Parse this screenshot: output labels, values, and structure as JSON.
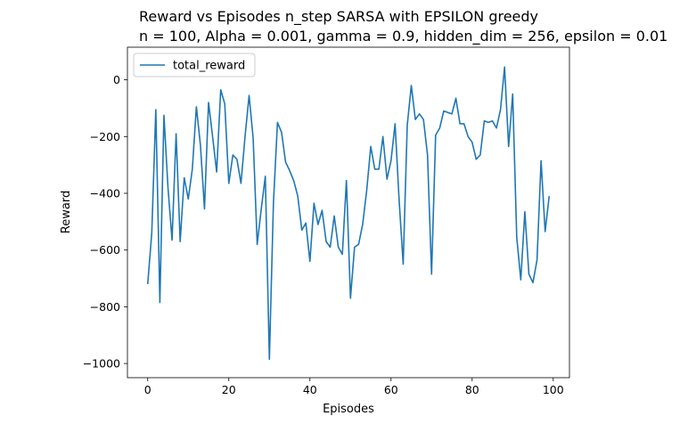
{
  "chart_data": {
    "type": "line",
    "title": "Reward vs Episodes n_step SARSA with EPSILON greedy",
    "subtitle": "n = 100, Alpha = 0.001, gamma = 0.9, hidden_dim = 256, epsilon = 0.01",
    "xlabel": "Episodes",
    "ylabel": "Reward",
    "xlim": [
      -5,
      104
    ],
    "ylim": [
      -1050,
      115
    ],
    "xticks": [
      0,
      20,
      40,
      60,
      80,
      100
    ],
    "yticks": [
      0,
      -200,
      -400,
      -600,
      -800,
      -1000
    ],
    "grid": false,
    "legend_position": "top-left",
    "series": [
      {
        "name": "total_reward",
        "color": "#1f77b4",
        "x": [
          0,
          1,
          2,
          3,
          4,
          5,
          6,
          7,
          8,
          9,
          10,
          11,
          12,
          13,
          14,
          15,
          16,
          17,
          18,
          19,
          20,
          21,
          22,
          23,
          24,
          25,
          26,
          27,
          28,
          29,
          30,
          31,
          32,
          33,
          34,
          35,
          36,
          37,
          38,
          39,
          40,
          41,
          42,
          43,
          44,
          45,
          46,
          47,
          48,
          49,
          50,
          51,
          52,
          53,
          54,
          55,
          56,
          57,
          58,
          59,
          60,
          61,
          62,
          63,
          64,
          65,
          66,
          67,
          68,
          69,
          70,
          71,
          72,
          73,
          74,
          75,
          76,
          77,
          78,
          79,
          80,
          81,
          82,
          83,
          84,
          85,
          86,
          87,
          88,
          89,
          90,
          91,
          92,
          93,
          94,
          95,
          96,
          97,
          98,
          99
        ],
        "values": [
          -720,
          -540,
          -105,
          -785,
          -125,
          -380,
          -565,
          -190,
          -570,
          -345,
          -420,
          -315,
          -95,
          -230,
          -455,
          -80,
          -200,
          -325,
          -35,
          -85,
          -365,
          -265,
          -280,
          -365,
          -200,
          -55,
          -205,
          -580,
          -455,
          -340,
          -985,
          -435,
          -150,
          -185,
          -290,
          -320,
          -355,
          -410,
          -530,
          -505,
          -640,
          -435,
          -510,
          -460,
          -570,
          -590,
          -480,
          -590,
          -615,
          -355,
          -770,
          -590,
          -580,
          -510,
          -390,
          -235,
          -315,
          -315,
          -200,
          -350,
          -285,
          -155,
          -425,
          -650,
          -160,
          -20,
          -140,
          -120,
          -140,
          -265,
          -685,
          -195,
          -170,
          -110,
          -115,
          -120,
          -65,
          -155,
          -155,
          -200,
          -220,
          -280,
          -265,
          -145,
          -150,
          -145,
          -170,
          -105,
          45,
          -235,
          -50,
          -555,
          -705,
          -465,
          -685,
          -715,
          -635,
          -285,
          -535,
          -410
        ]
      }
    ]
  }
}
